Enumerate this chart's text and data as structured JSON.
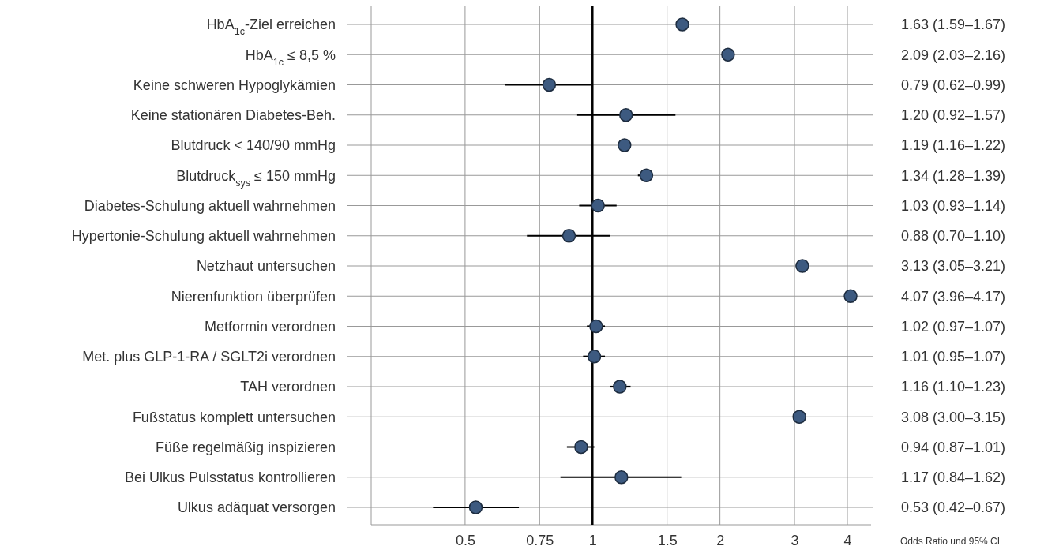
{
  "chart_data": {
    "type": "scatter",
    "orientation": "horizontal",
    "xlabel": "Odds Ratio und 95% CI",
    "categories": [
      "HbA$_{1c}$-Ziel erreichen",
      "HbA$_{1c}$ ≤ 8,5 %",
      "Keine schweren Hypoglykämien",
      "Keine stationären Diabetes-Beh.",
      "Blutdruck < 140/90 mmHg",
      "Blutdruck$_{sys}$ ≤ 150 mmHg",
      "Diabetes-Schulung aktuell wahrnehmen",
      "Hypertonie-Schulung aktuell wahrnehmen",
      "Netzhaut untersuchen",
      "Nierenfunktion überprüfen",
      "Metformin verordnen",
      "Met. plus GLP-1-RA / SGLT2i verordnen",
      "TAH verordnen",
      "Fußstatus komplett untersuchen",
      "Füße regelmäßig inspizieren",
      "Bei Ulkus Pulsstatus kontrollieren",
      "Ulkus adäquat versorgen"
    ],
    "values": [
      1.63,
      2.09,
      0.79,
      1.2,
      1.19,
      1.34,
      1.03,
      0.88,
      3.13,
      4.07,
      1.02,
      1.01,
      1.16,
      3.08,
      0.94,
      1.17,
      0.53
    ],
    "errors": [
      [
        1.59,
        1.67
      ],
      [
        2.03,
        2.16
      ],
      [
        0.62,
        0.99
      ],
      [
        0.92,
        1.57
      ],
      [
        1.16,
        1.22
      ],
      [
        1.28,
        1.39
      ],
      [
        0.93,
        1.14
      ],
      [
        0.7,
        1.1
      ],
      [
        3.05,
        3.21
      ],
      [
        3.96,
        4.17
      ],
      [
        0.97,
        1.07
      ],
      [
        0.95,
        1.07
      ],
      [
        1.1,
        1.23
      ],
      [
        3.0,
        3.15
      ],
      [
        0.87,
        1.01
      ],
      [
        0.84,
        1.62
      ],
      [
        0.42,
        0.67
      ]
    ],
    "value_labels": [
      "1.63 (1.59–1.67)",
      "2.09 (2.03–2.16)",
      "0.79 (0.62–0.99)",
      "1.20 (0.92–1.57)",
      "1.19 (1.16–1.22)",
      "1.34 (1.28–1.39)",
      "1.03 (0.93–1.14)",
      "0.88 (0.70–1.10)",
      "3.13 (3.05–3.21)",
      "4.07 (3.96–4.17)",
      "1.02 (0.97–1.07)",
      "1.01 (0.95–1.07)",
      "1.16 (1.10–1.23)",
      "3.08 (3.00–3.15)",
      "0.94 (0.87–1.01)",
      "1.17 (0.84–1.62)",
      "0.53 (0.42–0.67)"
    ],
    "color": "#3d5a80",
    "marker": "circle",
    "log": "x",
    "grid": true,
    "xlim": [
      0.3,
      4.55
    ],
    "xticks": [
      0.5,
      0.75,
      1,
      1.5,
      2,
      3,
      4
    ],
    "ref_lines": [
      {
        "axis": "x",
        "value": 1,
        "color": "#000000"
      }
    ]
  }
}
